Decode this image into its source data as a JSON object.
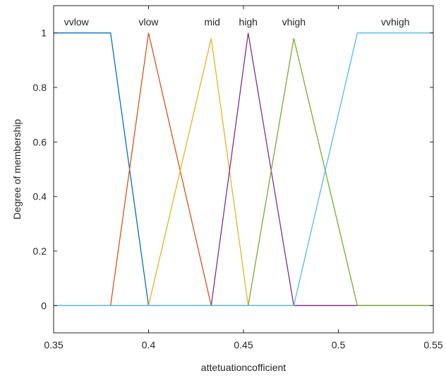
{
  "chart_data": {
    "type": "line",
    "xlabel": "attetuationcofficient",
    "ylabel": "Degree of membership",
    "xlim": [
      0.35,
      0.55
    ],
    "ylim": [
      -0.1,
      1.1
    ],
    "xticks": [
      0.35,
      0.4,
      0.45,
      0.5,
      0.55
    ],
    "xtick_labels": [
      "0.35",
      "0.4",
      "0.45",
      "0.5",
      "0.55"
    ],
    "yticks": [
      0,
      0.2,
      0.4,
      0.6,
      0.8,
      1
    ],
    "ytick_labels": [
      "0",
      "0.2",
      "0.4",
      "0.6",
      "0.8",
      "1"
    ],
    "grid": false,
    "series": [
      {
        "name": "vvlow",
        "color": "#0072BD",
        "x": [
          0.35,
          0.38,
          0.4,
          0.55
        ],
        "y": [
          1,
          1,
          0,
          0
        ],
        "label_x": 0.362
      },
      {
        "name": "vlow",
        "color": "#D95319",
        "x": [
          0.35,
          0.38,
          0.4,
          0.433,
          0.55
        ],
        "y": [
          0,
          0,
          1,
          0,
          0
        ],
        "label_x": 0.4
      },
      {
        "name": "mid",
        "color": "#EDB120",
        "x": [
          0.35,
          0.4,
          0.433,
          0.4525,
          0.55
        ],
        "y": [
          0,
          0,
          0.98,
          0,
          0
        ],
        "label_x": 0.4335
      },
      {
        "name": "high",
        "color": "#7E2F8E",
        "x": [
          0.35,
          0.433,
          0.4525,
          0.4765,
          0.55
        ],
        "y": [
          0,
          0,
          1,
          0,
          0
        ],
        "label_x": 0.4525
      },
      {
        "name": "vhigh",
        "color": "#77AC30",
        "x": [
          0.35,
          0.4525,
          0.4765,
          0.51,
          0.55
        ],
        "y": [
          0,
          0,
          0.98,
          0,
          0
        ],
        "label_x": 0.4765
      },
      {
        "name": "vvhigh",
        "color": "#4DBEEE",
        "x": [
          0.35,
          0.4765,
          0.51,
          0.55
        ],
        "y": [
          0,
          0,
          1,
          1
        ],
        "label_x": 0.53
      }
    ]
  }
}
